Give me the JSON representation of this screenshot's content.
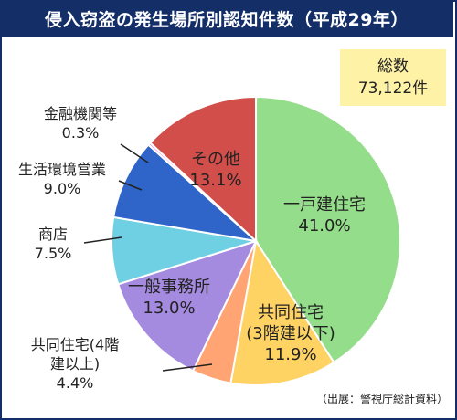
{
  "title": "侵入窃盗の発生場所別認知件数（平成29年）",
  "total": {
    "label": "総数",
    "value": "73,122件"
  },
  "source": "（出展：警視庁総計資料）",
  "colors": {
    "title_bg": "#142f68",
    "total_bg": "#fef2a6"
  },
  "chart_data": {
    "type": "pie",
    "title": "侵入窃盗の発生場所別認知件数（平成29年）",
    "start_angle_deg": 0,
    "direction": "clockwise",
    "slices": [
      {
        "name": "一戸建住宅",
        "label_lines": [
          "一戸建住宅",
          "41.0%"
        ],
        "percent_text": "41.0%",
        "value": 41.0,
        "color": "#94dd8a",
        "label_inside": true
      },
      {
        "name": "共同住宅(3階建以下)",
        "label_lines": [
          "共同住宅",
          "(3階建以下)",
          "11.9%"
        ],
        "percent_text": "11.9%",
        "value": 11.9,
        "color": "#fed263",
        "label_inside": true
      },
      {
        "name": "共同住宅(4階建以上)",
        "label_lines": [
          "共同住宅(4階",
          "建以上)",
          "4.4%"
        ],
        "percent_text": "4.4%",
        "value": 4.4,
        "color": "#ffa472",
        "label_inside": false
      },
      {
        "name": "一般事務所",
        "label_lines": [
          "一般事務所",
          "13.0%"
        ],
        "percent_text": "13.0%",
        "value": 13.0,
        "color": "#a48bdf",
        "label_inside": true
      },
      {
        "name": "商店",
        "label_lines": [
          "商店",
          "7.5%"
        ],
        "percent_text": "7.5%",
        "value": 7.5,
        "color": "#6fcfe3",
        "label_inside": false
      },
      {
        "name": "生活環境営業",
        "label_lines": [
          "生活環境営業",
          "9.0%"
        ],
        "percent_text": "9.0%",
        "value": 9.0,
        "color": "#2f65c8",
        "label_inside": false
      },
      {
        "name": "金融機関等",
        "label_lines": [
          "金融機関等",
          "0.3%"
        ],
        "percent_text": "0.3%",
        "value": 0.3,
        "color": "#f7a1ee",
        "label_inside": false
      },
      {
        "name": "その他",
        "label_lines": [
          "その他",
          "13.1%"
        ],
        "percent_text": "13.1%",
        "value": 13.1,
        "color": "#d14e4b",
        "label_inside": true
      }
    ]
  }
}
